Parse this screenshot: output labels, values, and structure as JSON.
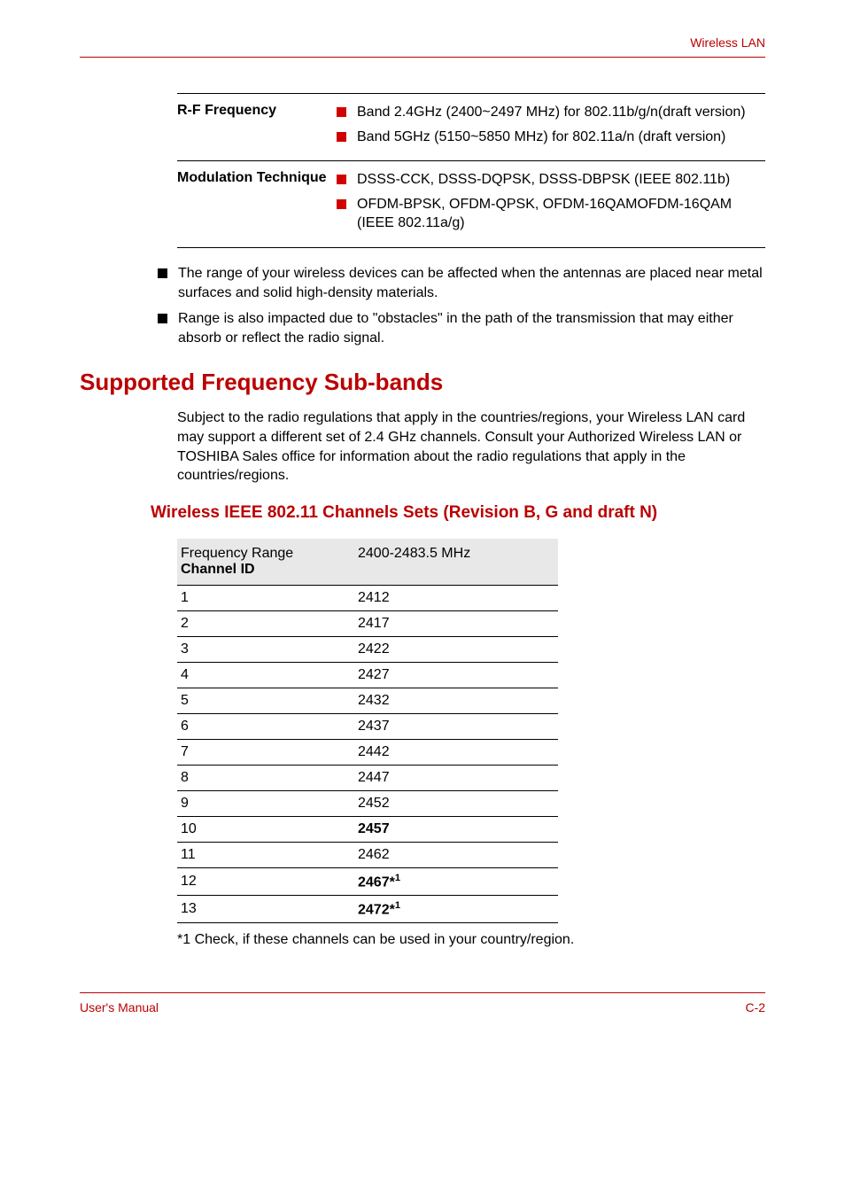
{
  "header": {
    "title": "Wireless LAN"
  },
  "spec": {
    "rows": [
      {
        "label": "R-F Frequency",
        "items": [
          "Band 2.4GHz (2400~2497 MHz) for 802.11b/g/n(draft version)",
          "Band 5GHz (5150~5850 MHz) for 802.11a/n (draft version)"
        ]
      },
      {
        "label": "Modulation Technique",
        "items": [
          "DSSS-CCK, DSSS-DQPSK, DSSS-DBPSK (IEEE 802.11b)",
          "OFDM-BPSK, OFDM-QPSK, OFDM-16QAMOFDM-16QAM (IEEE 802.11a/g)"
        ]
      }
    ]
  },
  "notes": [
    "The range of your wireless devices can be affected when the antennas are placed near metal surfaces and solid high-density materials.",
    "Range is also impacted due to \"obstacles\" in the path of the transmission that may either absorb or reflect the radio signal."
  ],
  "section": {
    "title": "Supported Frequency Sub-bands",
    "body": "Subject to the radio regulations that apply in the countries/regions, your Wireless LAN card may support a different set of 2.4 GHz channels. Consult your Authorized Wireless LAN or TOSHIBA Sales office for information about the radio regulations that apply in the countries/regions."
  },
  "subsection": {
    "title": "Wireless IEEE 802.11 Channels Sets (Revision B, G and draft N)"
  },
  "freqTable": {
    "header": {
      "left1": "Frequency Range",
      "left2": "Channel ID",
      "right": "2400-2483.5 MHz"
    },
    "rows": [
      {
        "id": "1",
        "val": "2412",
        "bold": false,
        "sup": false
      },
      {
        "id": "2",
        "val": "2417",
        "bold": false,
        "sup": false
      },
      {
        "id": "3",
        "val": "2422",
        "bold": false,
        "sup": false
      },
      {
        "id": "4",
        "val": "2427",
        "bold": false,
        "sup": false
      },
      {
        "id": "5",
        "val": "2432",
        "bold": false,
        "sup": false
      },
      {
        "id": "6",
        "val": "2437",
        "bold": false,
        "sup": false
      },
      {
        "id": "7",
        "val": "2442",
        "bold": false,
        "sup": false
      },
      {
        "id": "8",
        "val": "2447",
        "bold": false,
        "sup": false
      },
      {
        "id": "9",
        "val": "2452",
        "bold": false,
        "sup": false
      },
      {
        "id": "10",
        "val": "2457",
        "bold": true,
        "sup": false
      },
      {
        "id": "11",
        "val": "2462",
        "bold": false,
        "sup": false
      },
      {
        "id": "12",
        "val": "2467*",
        "bold": true,
        "sup": true
      },
      {
        "id": "13",
        "val": "2472*",
        "bold": true,
        "sup": true
      }
    ],
    "supText": "1"
  },
  "footnote": "*1 Check, if these channels can be used in your country/region.",
  "footer": {
    "left": "User's Manual",
    "right": "C-2"
  }
}
